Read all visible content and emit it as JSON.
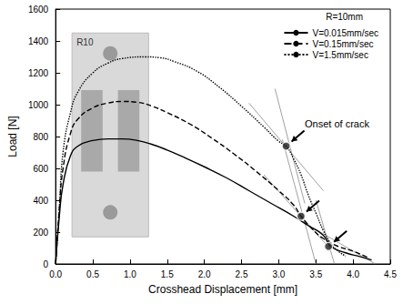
{
  "chart_data": {
    "type": "line",
    "x_label": "Crosshead Displacement [mm]",
    "y_label": "Load [N]",
    "xlim": [
      0,
      4.5
    ],
    "xticks": [
      {
        "value": 0,
        "label": "0.0"
      },
      {
        "value": 0.5,
        "label": "0.5"
      },
      {
        "value": 1,
        "label": "1.0"
      },
      {
        "value": 1.5,
        "label": "1.5"
      },
      {
        "value": 2,
        "label": "2.0"
      },
      {
        "value": 2.5,
        "label": "2.5"
      },
      {
        "value": 3,
        "label": "3.0"
      },
      {
        "value": 3.5,
        "label": "3.5"
      },
      {
        "value": 4,
        "label": "4.0"
      },
      {
        "value": 4.5,
        "label": "4.5"
      }
    ],
    "ylim": [
      0,
      1600
    ],
    "yticks": [
      0,
      200,
      400,
      600,
      800,
      1000,
      1200,
      1400,
      1600
    ],
    "grid": false,
    "legend": "upper right",
    "legend_title": "R=10mm",
    "inset_label": "R10",
    "series": [
      {
        "name": "V=0.015mm/sec",
        "color": "#000000",
        "line_style": "solid",
        "x": [
          0,
          0.05,
          0.1,
          0.2,
          0.3,
          0.5,
          0.7,
          0.9,
          1.1,
          1.3,
          1.5,
          1.7,
          2.0,
          2.3,
          2.6,
          2.9,
          3.2,
          3.4,
          3.6,
          3.7,
          3.9,
          4.1,
          4.25
        ],
        "values": [
          0,
          300,
          500,
          680,
          740,
          775,
          785,
          785,
          775,
          750,
          715,
          675,
          610,
          540,
          460,
          380,
          300,
          240,
          180,
          110,
          70,
          45,
          25
        ]
      },
      {
        "name": "V=0.15mm/sec",
        "color": "#000000",
        "line_style": "dashed",
        "x": [
          0,
          0.05,
          0.1,
          0.2,
          0.3,
          0.5,
          0.7,
          0.9,
          1.1,
          1.3,
          1.5,
          1.8,
          2.1,
          2.4,
          2.7,
          3.0,
          3.2,
          3.3,
          3.45,
          3.6,
          3.8,
          4.0,
          4.2
        ],
        "values": [
          0,
          350,
          600,
          820,
          910,
          980,
          1010,
          1020,
          1015,
          990,
          950,
          880,
          790,
          690,
          580,
          460,
          370,
          300,
          220,
          160,
          110,
          80,
          40
        ]
      },
      {
        "name": "V=1.5mm/sec",
        "color": "#000000",
        "line_style": "dotted",
        "x": [
          0,
          0.05,
          0.1,
          0.2,
          0.3,
          0.5,
          0.7,
          0.9,
          1.2,
          1.4,
          1.6,
          1.9,
          2.2,
          2.5,
          2.8,
          3.0,
          3.1,
          3.2,
          3.3,
          3.4,
          3.5,
          3.6,
          3.7,
          3.8,
          3.9
        ],
        "values": [
          0,
          350,
          700,
          950,
          1080,
          1200,
          1260,
          1290,
          1300,
          1295,
          1270,
          1210,
          1110,
          990,
          860,
          770,
          740,
          660,
          560,
          430,
          320,
          210,
          130,
          80,
          50
        ]
      }
    ],
    "crack_points": {
      "x": [
        3.1,
        3.3,
        3.67
      ],
      "y": [
        740,
        300,
        110
      ]
    },
    "tangents": [
      {
        "x": [
          2.6,
          3.6
        ],
        "y": [
          1010,
          460
        ]
      },
      {
        "x": [
          2.95,
          3.35
        ],
        "y": [
          1100,
          380
        ]
      },
      {
        "x": [
          2.8,
          3.7
        ],
        "y": [
          560,
          90
        ]
      },
      {
        "x": [
          3.05,
          3.5
        ],
        "y": [
          780,
          0
        ]
      },
      {
        "x": [
          3.3,
          4.3
        ],
        "y": [
          270,
          0
        ]
      },
      {
        "x": [
          3.5,
          3.75
        ],
        "y": [
          400,
          0
        ]
      }
    ],
    "annotation": {
      "text": "Onset of crack",
      "x": 3.35,
      "y": 870
    }
  }
}
